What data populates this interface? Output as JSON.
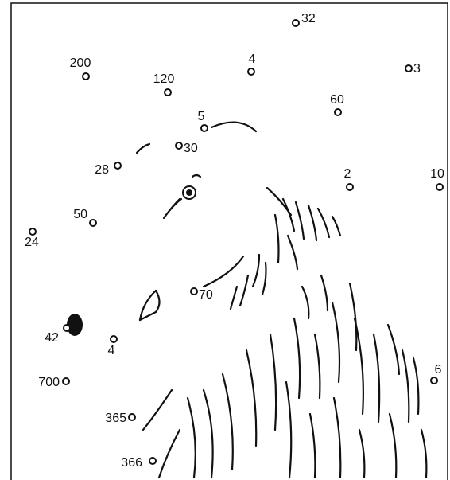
{
  "dots": [
    "32",
    "200",
    "4",
    "3",
    "120",
    "60",
    "5",
    "30",
    "28",
    "2",
    "10",
    "50",
    "24",
    "70",
    "42",
    "4",
    "6",
    "700",
    "365",
    "366"
  ]
}
